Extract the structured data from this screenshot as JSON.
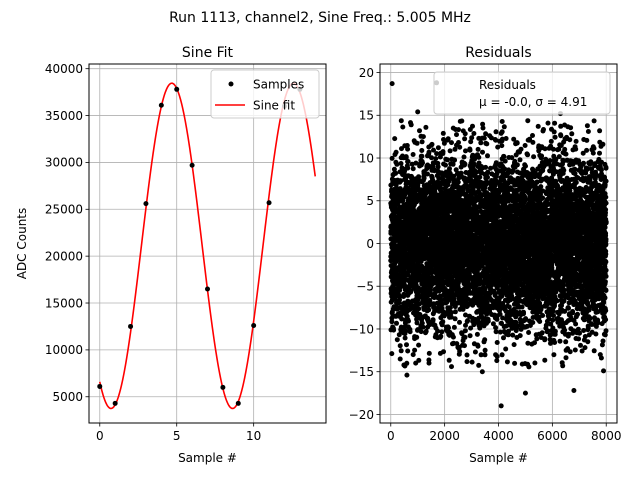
{
  "suptitle": "Run 1113, channel2, Sine Freq.: 5.005 MHz",
  "chart_data": [
    {
      "type": "line",
      "title": "Sine Fit",
      "xlabel": "Sample #",
      "ylabel": "ADC Counts",
      "xlim": [
        -0.7,
        14.7
      ],
      "ylim": [
        2200,
        40500
      ],
      "xticks": [
        0,
        5,
        10
      ],
      "xtick_labels": [
        "0",
        "5",
        "10"
      ],
      "yticks": [
        5000,
        10000,
        15000,
        20000,
        25000,
        30000,
        35000,
        40000
      ],
      "ytick_labels": [
        "5000",
        "10000",
        "15000",
        "20000",
        "25000",
        "30000",
        "35000",
        "40000"
      ],
      "grid": true,
      "legend": "top-right",
      "series": [
        {
          "name": "Samples",
          "kind": "scatter",
          "color": "#000000",
          "x": [
            0,
            1,
            2,
            3,
            4,
            5,
            6,
            7,
            8,
            9,
            10,
            11,
            12,
            13
          ],
          "y": [
            6100,
            4300,
            12500,
            25600,
            36100,
            37800,
            29700,
            16500,
            6000,
            4300,
            12600,
            25700,
            36000,
            37800
          ]
        },
        {
          "name": "Sine fit",
          "kind": "line",
          "color": "#ff0000",
          "model": {
            "offset": 21100,
            "amplitude": 17350,
            "period": 7.9,
            "peak_x": 4.68
          },
          "x_range": [
            0,
            14
          ]
        }
      ]
    },
    {
      "type": "scatter",
      "title": "Residuals",
      "xlabel": "Sample #",
      "ylabel": "",
      "xlim": [
        -400,
        8400
      ],
      "ylim": [
        -21,
        21
      ],
      "xticks": [
        0,
        2000,
        4000,
        6000,
        8000
      ],
      "xtick_labels": [
        "0",
        "2000",
        "4000",
        "6000",
        "8000"
      ],
      "yticks": [
        -20,
        -15,
        -10,
        -5,
        0,
        5,
        10,
        15,
        20
      ],
      "ytick_labels": [
        "−20",
        "−15",
        "−10",
        "−5",
        "0",
        "5",
        "10",
        "15",
        "20"
      ],
      "grid": true,
      "legend": "top-right",
      "legend_lines": [
        "Residuals",
        "μ = -0.0, σ = 4.91"
      ],
      "series": [
        {
          "name": "Residuals",
          "color": "#000000",
          "n_points": 8000,
          "distribution": {
            "mean": 0.0,
            "std": 4.91
          },
          "notable_points": [
            {
              "x": 50,
              "y": 18.7
            },
            {
              "x": 1000,
              "y": 15.4
            },
            {
              "x": 1700,
              "y": 18.8
            },
            {
              "x": 6300,
              "y": 15.2
            },
            {
              "x": 4100,
              "y": -19.0
            },
            {
              "x": 5000,
              "y": -17.5
            },
            {
              "x": 6800,
              "y": -17.2
            },
            {
              "x": 600,
              "y": -15.4
            },
            {
              "x": 3400,
              "y": -15.0
            },
            {
              "x": 7900,
              "y": -14.9
            }
          ]
        }
      ]
    }
  ]
}
